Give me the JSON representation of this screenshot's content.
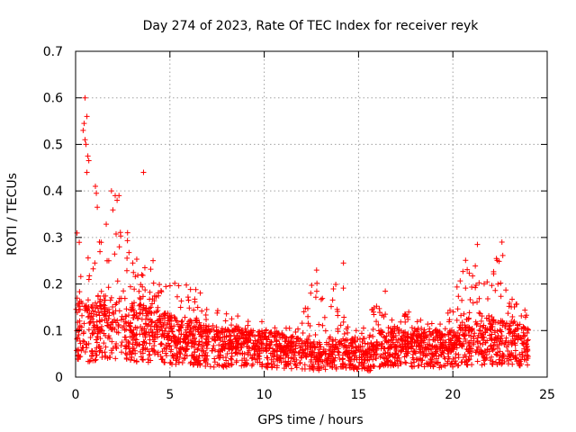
{
  "chart_data": {
    "type": "scatter",
    "title": "Day 274 of 2023, Rate Of TEC Index for receiver reyk",
    "xlabel": "GPS time / hours",
    "ylabel": "ROTI / TECUs",
    "xlim": [
      0,
      25
    ],
    "ylim": [
      0,
      0.7
    ],
    "xticks": [
      "0",
      "5",
      "10",
      "15",
      "20",
      "25"
    ],
    "yticks": [
      "0",
      "0.1",
      "0.2",
      "0.3",
      "0.4",
      "0.5",
      "0.6",
      "0.7"
    ],
    "grid": true,
    "marker": "+",
    "series": [
      {
        "name": "ROTI",
        "color": "#ff0000",
        "envelope": {
          "hours": [
            0,
            0.5,
            1,
            1.5,
            2,
            2.5,
            3,
            3.5,
            4,
            4.5,
            5,
            5.5,
            6,
            6.5,
            7,
            7.5,
            8,
            8.5,
            9,
            9.5,
            10,
            10.5,
            11,
            11.5,
            12,
            12.5,
            13,
            13.5,
            14,
            14.5,
            15,
            15.5,
            16,
            16.5,
            17,
            17.5,
            18,
            18.5,
            19,
            19.5,
            20,
            20.5,
            21,
            21.5,
            22,
            22.5,
            23,
            23.5,
            24
          ],
          "median": [
            0.1,
            0.09,
            0.09,
            0.1,
            0.1,
            0.1,
            0.09,
            0.09,
            0.09,
            0.08,
            0.08,
            0.07,
            0.07,
            0.07,
            0.06,
            0.06,
            0.06,
            0.06,
            0.06,
            0.06,
            0.06,
            0.055,
            0.055,
            0.05,
            0.05,
            0.045,
            0.04,
            0.045,
            0.05,
            0.05,
            0.04,
            0.035,
            0.06,
            0.06,
            0.065,
            0.06,
            0.06,
            0.06,
            0.06,
            0.055,
            0.06,
            0.065,
            0.07,
            0.07,
            0.075,
            0.07,
            0.07,
            0.065,
            0.065
          ],
          "max": [
            0.33,
            0.3,
            0.29,
            0.31,
            0.39,
            0.33,
            0.3,
            0.23,
            0.29,
            0.26,
            0.25,
            0.2,
            0.2,
            0.19,
            0.17,
            0.15,
            0.14,
            0.14,
            0.13,
            0.12,
            0.12,
            0.11,
            0.11,
            0.12,
            0.17,
            0.23,
            0.23,
            0.18,
            0.24,
            0.14,
            0.12,
            0.1,
            0.22,
            0.18,
            0.14,
            0.14,
            0.15,
            0.12,
            0.12,
            0.13,
            0.16,
            0.27,
            0.28,
            0.22,
            0.2,
            0.29,
            0.2,
            0.16,
            0.15
          ]
        },
        "outliers": [
          {
            "x": 0.5,
            "y": 0.6
          },
          {
            "x": 0.6,
            "y": 0.56
          },
          {
            "x": 0.45,
            "y": 0.545
          },
          {
            "x": 0.4,
            "y": 0.53
          },
          {
            "x": 0.5,
            "y": 0.51
          },
          {
            "x": 0.55,
            "y": 0.5
          },
          {
            "x": 0.65,
            "y": 0.475
          },
          {
            "x": 0.7,
            "y": 0.465
          },
          {
            "x": 0.6,
            "y": 0.44
          },
          {
            "x": 3.6,
            "y": 0.44
          },
          {
            "x": 1.05,
            "y": 0.41
          },
          {
            "x": 1.1,
            "y": 0.395
          },
          {
            "x": 1.9,
            "y": 0.4
          },
          {
            "x": 2.1,
            "y": 0.39
          },
          {
            "x": 2.2,
            "y": 0.38
          },
          {
            "x": 2.3,
            "y": 0.39
          },
          {
            "x": 1.15,
            "y": 0.365
          },
          {
            "x": 14.2,
            "y": 0.245
          },
          {
            "x": 21.3,
            "y": 0.285
          },
          {
            "x": 22.6,
            "y": 0.29
          }
        ]
      }
    ]
  }
}
